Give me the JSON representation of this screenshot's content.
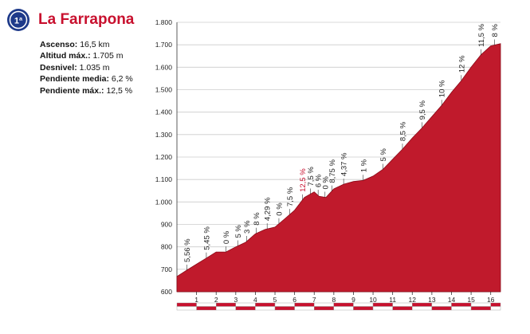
{
  "header": {
    "title": "La Farrapona",
    "badge_glyph": "1ª",
    "stats": [
      {
        "label": "Ascenso:",
        "value": "16,5 km"
      },
      {
        "label": "Altitud máx.:",
        "value": "1.705 m"
      },
      {
        "label": "Desnivel:",
        "value": "1.035 m"
      },
      {
        "label": "Pendiente media:",
        "value": "6,2 %"
      },
      {
        "label": "Pendiente máx.:",
        "value": "12,5 %"
      }
    ]
  },
  "colors": {
    "fill": "#c01a2c",
    "accent": "#c8102e",
    "badge": "#1e3a8a",
    "grid": "#cccccc"
  },
  "chart_data": {
    "type": "area",
    "title": "",
    "xlabel": "",
    "ylabel": "",
    "xlim": [
      0,
      16.5
    ],
    "ylim": [
      600,
      1800
    ],
    "yticks": [
      600,
      700,
      800,
      900,
      1000,
      1100,
      1200,
      1300,
      1400,
      1500,
      1600,
      1700,
      1800
    ],
    "ytick_labels": [
      "600",
      "700",
      "800",
      "900",
      "1.000",
      "1.100",
      "1.200",
      "1.300",
      "1.400",
      "1.500",
      "1.600",
      "1.700",
      "1.800"
    ],
    "xticks": [
      1,
      2,
      3,
      4,
      5,
      6,
      7,
      8,
      9,
      10,
      11,
      12,
      13,
      14,
      15,
      16
    ],
    "xtick_labels": [
      "1",
      "2",
      "3",
      "4",
      "5",
      "6",
      "7",
      "8",
      "9",
      "10",
      "11",
      "12",
      "13",
      "14",
      "15",
      "16"
    ],
    "grid": true,
    "profile": [
      {
        "x": 0,
        "y": 668
      },
      {
        "x": 0.5,
        "y": 696
      },
      {
        "x": 1,
        "y": 723
      },
      {
        "x": 1.5,
        "y": 750
      },
      {
        "x": 2,
        "y": 777
      },
      {
        "x": 2.5,
        "y": 777
      },
      {
        "x": 3,
        "y": 800
      },
      {
        "x": 3.5,
        "y": 820
      },
      {
        "x": 4,
        "y": 858
      },
      {
        "x": 4.5,
        "y": 878
      },
      {
        "x": 5,
        "y": 888
      },
      {
        "x": 5.5,
        "y": 925
      },
      {
        "x": 6,
        "y": 963
      },
      {
        "x": 6.5,
        "y": 1020
      },
      {
        "x": 7,
        "y": 1045
      },
      {
        "x": 7.25,
        "y": 1025
      },
      {
        "x": 7.6,
        "y": 1020
      },
      {
        "x": 8,
        "y": 1058
      },
      {
        "x": 8.5,
        "y": 1079
      },
      {
        "x": 9,
        "y": 1091
      },
      {
        "x": 9.5,
        "y": 1096
      },
      {
        "x": 10,
        "y": 1115
      },
      {
        "x": 10.5,
        "y": 1145
      },
      {
        "x": 11,
        "y": 1190
      },
      {
        "x": 11.5,
        "y": 1235
      },
      {
        "x": 12,
        "y": 1285
      },
      {
        "x": 12.5,
        "y": 1330
      },
      {
        "x": 13,
        "y": 1380
      },
      {
        "x": 13.5,
        "y": 1430
      },
      {
        "x": 14,
        "y": 1488
      },
      {
        "x": 14.5,
        "y": 1540
      },
      {
        "x": 15,
        "y": 1600
      },
      {
        "x": 15.5,
        "y": 1655
      },
      {
        "x": 16,
        "y": 1695
      },
      {
        "x": 16.5,
        "y": 1705
      }
    ],
    "gradients": [
      {
        "x": 0.5,
        "label": "5,56 %"
      },
      {
        "x": 1.5,
        "label": "5,45 %"
      },
      {
        "x": 2.5,
        "label": "0 %"
      },
      {
        "x": 3.1,
        "label": "5 %"
      },
      {
        "x": 3.55,
        "label": "3 %"
      },
      {
        "x": 4.05,
        "label": "8 %"
      },
      {
        "x": 4.6,
        "label": "4,29 %"
      },
      {
        "x": 5.2,
        "label": "0 %"
      },
      {
        "x": 5.75,
        "label": "7,5 %"
      },
      {
        "x": 6.4,
        "label": "12,5 %",
        "highlight": true
      },
      {
        "x": 6.8,
        "label": "7,5 %"
      },
      {
        "x": 7.2,
        "label": "6 %"
      },
      {
        "x": 7.55,
        "label": "0 %"
      },
      {
        "x": 7.9,
        "label": "8,75 %"
      },
      {
        "x": 8.5,
        "label": "4,37 %"
      },
      {
        "x": 9.5,
        "label": "1 %"
      },
      {
        "x": 10.5,
        "label": "5 %"
      },
      {
        "x": 11.5,
        "label": "8,5 %"
      },
      {
        "x": 12.5,
        "label": "9,5 %"
      },
      {
        "x": 13.5,
        "label": "10 %"
      },
      {
        "x": 14.5,
        "label": "12 %"
      },
      {
        "x": 15.5,
        "label": "11,5 %"
      },
      {
        "x": 16.2,
        "label": "8 %"
      }
    ]
  }
}
